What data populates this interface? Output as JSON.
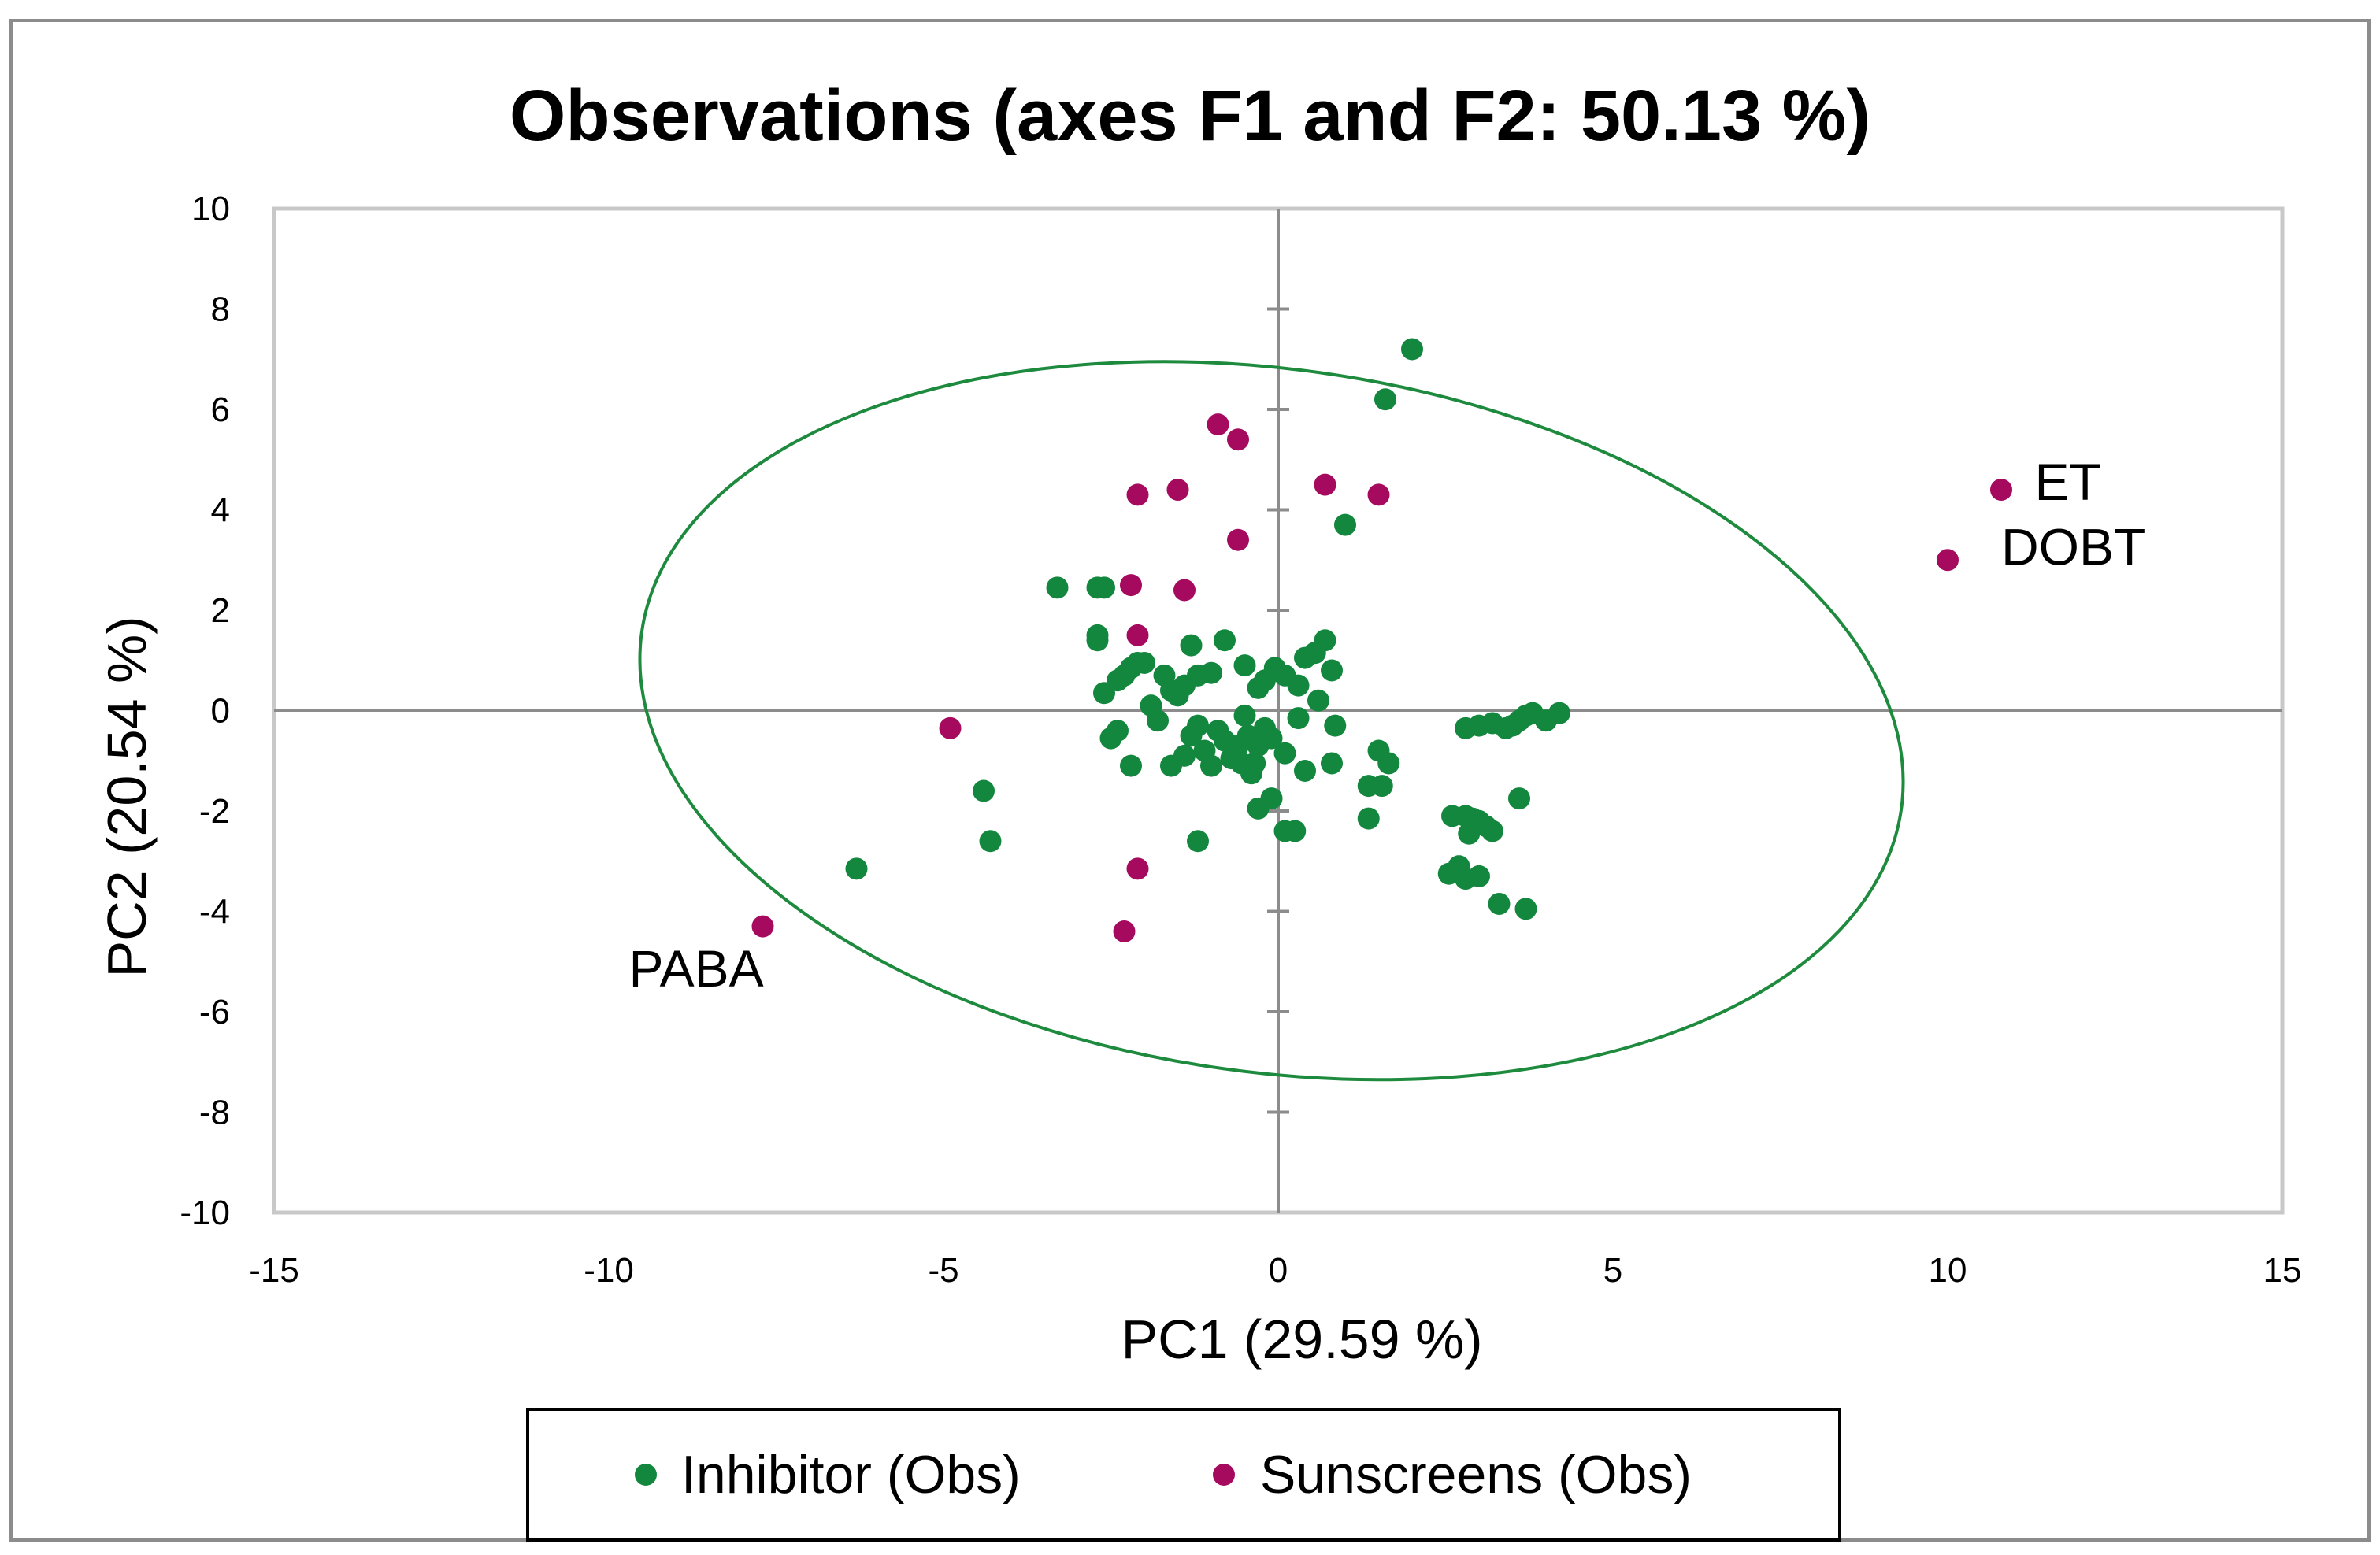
{
  "chart_data": {
    "type": "scatter",
    "title": "Observations (axes F1 and F2: 50.13 %)",
    "xlabel": "PC1 (29.59 %)",
    "ylabel": "PC2 (20.54 %)",
    "xlim": [
      -15,
      15
    ],
    "ylim": [
      -10,
      10
    ],
    "xticks": [
      -15,
      -10,
      -5,
      0,
      5,
      10,
      15
    ],
    "yticks": [
      -10,
      -8,
      -6,
      -4,
      -2,
      0,
      2,
      4,
      6,
      8,
      10
    ],
    "grid": false,
    "legend_position": "bottom",
    "confidence_ellipse": {
      "center": [
        -0.1,
        -0.2
      ],
      "semi_axes": [
        9.5,
        7.0
      ],
      "rotation_deg": -8,
      "color": "#1e8a3e"
    },
    "series": [
      {
        "name": "Inhibitor (Obs)",
        "color": "#12873d",
        "points": [
          [
            2.0,
            7.2
          ],
          [
            1.6,
            6.2
          ],
          [
            1.0,
            3.7
          ],
          [
            -3.3,
            2.45
          ],
          [
            -2.7,
            2.45
          ],
          [
            -2.6,
            2.45
          ],
          [
            -2.7,
            1.4
          ],
          [
            -2.7,
            1.5
          ],
          [
            -1.3,
            1.3
          ],
          [
            -0.8,
            1.4
          ],
          [
            0.7,
            1.4
          ],
          [
            0.8,
            0.8
          ],
          [
            -2.6,
            0.35
          ],
          [
            -2.4,
            0.6
          ],
          [
            -2.3,
            0.7
          ],
          [
            -2.2,
            0.85
          ],
          [
            -2.1,
            0.95
          ],
          [
            -2.0,
            0.95
          ],
          [
            -1.9,
            0.1
          ],
          [
            -1.7,
            0.7
          ],
          [
            -1.6,
            0.4
          ],
          [
            -1.5,
            0.3
          ],
          [
            -1.4,
            0.5
          ],
          [
            -1.2,
            0.7
          ],
          [
            -1.0,
            0.75
          ],
          [
            -0.5,
            0.9
          ],
          [
            -0.3,
            0.45
          ],
          [
            -0.2,
            0.6
          ],
          [
            -0.05,
            0.85
          ],
          [
            0.1,
            0.7
          ],
          [
            0.3,
            0.5
          ],
          [
            0.4,
            1.05
          ],
          [
            0.55,
            1.15
          ],
          [
            0.6,
            0.2
          ],
          [
            0.3,
            -0.15
          ],
          [
            -0.5,
            -0.1
          ],
          [
            -2.4,
            -0.4
          ],
          [
            -2.5,
            -0.55
          ],
          [
            -2.2,
            -1.1
          ],
          [
            -1.8,
            -0.2
          ],
          [
            -1.6,
            -1.1
          ],
          [
            -1.4,
            -0.9
          ],
          [
            -1.3,
            -0.5
          ],
          [
            -1.2,
            -0.3
          ],
          [
            -1.1,
            -0.8
          ],
          [
            -1.0,
            -1.1
          ],
          [
            -0.9,
            -0.4
          ],
          [
            -0.8,
            -0.6
          ],
          [
            -0.7,
            -0.95
          ],
          [
            -0.6,
            -0.7
          ],
          [
            -0.55,
            -1.05
          ],
          [
            -0.45,
            -0.5
          ],
          [
            -0.4,
            -1.25
          ],
          [
            -0.35,
            -1.05
          ],
          [
            -0.3,
            -0.7
          ],
          [
            -0.2,
            -0.35
          ],
          [
            -0.1,
            -0.55
          ],
          [
            0.1,
            -0.85
          ],
          [
            0.4,
            -1.2
          ],
          [
            0.8,
            -1.05
          ],
          [
            0.85,
            -0.3
          ],
          [
            1.5,
            -0.8
          ],
          [
            1.65,
            -1.05
          ],
          [
            1.35,
            -1.5
          ],
          [
            1.55,
            -1.5
          ],
          [
            -0.3,
            -1.95
          ],
          [
            -0.1,
            -1.75
          ],
          [
            0.1,
            -2.4
          ],
          [
            0.25,
            -2.4
          ],
          [
            1.35,
            -2.15
          ],
          [
            -1.2,
            -2.6
          ],
          [
            -4.4,
            -1.6
          ],
          [
            -4.3,
            -2.6
          ],
          [
            -6.3,
            -3.15
          ],
          [
            2.8,
            -0.35
          ],
          [
            3.0,
            -0.3
          ],
          [
            3.2,
            -0.25
          ],
          [
            3.4,
            -0.35
          ],
          [
            3.5,
            -0.3
          ],
          [
            3.6,
            -0.2
          ],
          [
            3.7,
            -0.1
          ],
          [
            3.8,
            -0.05
          ],
          [
            4.0,
            -0.2
          ],
          [
            4.2,
            -0.05
          ],
          [
            2.6,
            -2.1
          ],
          [
            2.8,
            -2.1
          ],
          [
            2.9,
            -2.15
          ],
          [
            3.0,
            -2.2
          ],
          [
            3.1,
            -2.3
          ],
          [
            3.2,
            -2.4
          ],
          [
            2.85,
            -2.45
          ],
          [
            3.6,
            -1.75
          ],
          [
            2.55,
            -3.25
          ],
          [
            2.7,
            -3.1
          ],
          [
            2.8,
            -3.35
          ],
          [
            3.0,
            -3.3
          ],
          [
            3.3,
            -3.85
          ],
          [
            3.7,
            -3.95
          ]
        ]
      },
      {
        "name": "Sunscreens (Obs)",
        "color": "#a50a5e",
        "points": [
          [
            -0.9,
            5.7
          ],
          [
            -0.6,
            5.4
          ],
          [
            -2.1,
            4.3
          ],
          [
            -1.5,
            4.4
          ],
          [
            0.7,
            4.5
          ],
          [
            1.5,
            4.3
          ],
          [
            -0.6,
            3.4
          ],
          [
            -2.2,
            2.5
          ],
          [
            -1.4,
            2.4
          ],
          [
            -2.1,
            1.5
          ],
          [
            -4.9,
            -0.35
          ],
          [
            -2.1,
            -3.15
          ],
          [
            -2.3,
            -4.4
          ],
          [
            -7.7,
            -4.3
          ],
          [
            10.0,
            3.0
          ],
          [
            10.8,
            4.4
          ]
        ]
      }
    ],
    "annotations": [
      {
        "text": "ET",
        "x": 11.3,
        "y": 4.2
      },
      {
        "text": "DOBT",
        "x": 10.8,
        "y": 2.9
      },
      {
        "text": "PABA",
        "x": -9.7,
        "y": -5.5
      }
    ]
  }
}
